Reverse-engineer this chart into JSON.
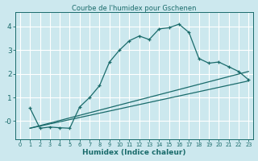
{
  "title": "Courbe de l'humidex pour Gschenen",
  "xlabel": "Humidex (Indice chaleur)",
  "xlim": [
    -0.5,
    23.5
  ],
  "ylim": [
    -0.75,
    4.6
  ],
  "xticks": [
    0,
    1,
    2,
    3,
    4,
    5,
    6,
    7,
    8,
    9,
    10,
    11,
    12,
    13,
    14,
    15,
    16,
    17,
    18,
    19,
    20,
    21,
    22,
    23
  ],
  "yticks": [
    0,
    1,
    2,
    3,
    4
  ],
  "ytick_labels": [
    "-0",
    "1",
    "2",
    "3",
    "4"
  ],
  "bg_color": "#cce8ee",
  "grid_color": "#ffffff",
  "line_color": "#1a6b6b",
  "line1_x": [
    1,
    2,
    3,
    4,
    5,
    6,
    7,
    8,
    9,
    10,
    11,
    12,
    13,
    14,
    15,
    16,
    17,
    18,
    19,
    20,
    21,
    22,
    23
  ],
  "line1_y": [
    0.55,
    -0.3,
    -0.25,
    -0.28,
    -0.3,
    0.6,
    1.0,
    1.5,
    2.5,
    3.0,
    3.4,
    3.6,
    3.45,
    3.9,
    3.95,
    4.1,
    3.75,
    2.65,
    2.45,
    2.5,
    2.3,
    2.1,
    1.75
  ],
  "line2_x": [
    1,
    23
  ],
  "line2_y": [
    -0.3,
    2.1
  ],
  "line3_x": [
    1,
    23
  ],
  "line3_y": [
    -0.3,
    1.7
  ]
}
